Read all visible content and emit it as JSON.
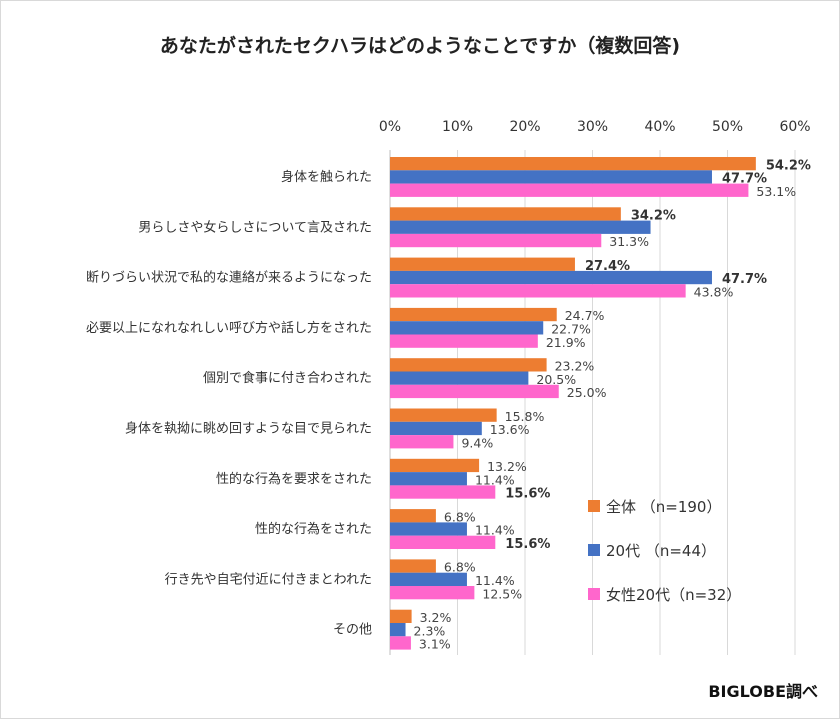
{
  "chart_data": {
    "type": "bar",
    "orientation": "horizontal",
    "title": "あなたがされたセクハラはどのようなことですか（複数回答)",
    "categories": [
      "身体を触られた",
      "男らしさや女らしさについて言及された",
      "断りづらい状況で私的な連絡が来るようになった",
      "必要以上になれなれしい呼び方や話し方をされた",
      "個別で食事に付き合わされた",
      "身体を執拗に眺め回すような目で見られた",
      "性的な行為を要求をされた",
      "性的な行為をされた",
      "行き先や自宅付近に付きまとわれた",
      "その他"
    ],
    "series": [
      {
        "name": "全体 （n=190）",
        "color": "#ED7D31",
        "values": [
          54.2,
          34.2,
          27.4,
          24.7,
          23.2,
          15.8,
          13.2,
          6.8,
          6.8,
          3.2
        ],
        "labels": [
          "54.2%",
          "34.2%",
          "27.4%",
          "24.7%",
          "23.2%",
          "15.8%",
          "13.2%",
          "6.8%",
          "6.8%",
          "3.2%"
        ],
        "bold": [
          true,
          true,
          true,
          false,
          false,
          false,
          false,
          false,
          false,
          false
        ]
      },
      {
        "name": "20代 （n=44）",
        "color": "#4472C4",
        "values": [
          47.7,
          38.6,
          47.7,
          22.7,
          20.5,
          13.6,
          11.4,
          11.4,
          11.4,
          2.3
        ],
        "labels": [
          "47.7%",
          "",
          "47.7%",
          "22.7%",
          "20.5%",
          "13.6%",
          "11.4%",
          "11.4%",
          "11.4%",
          "2.3%"
        ],
        "bold": [
          true,
          false,
          true,
          false,
          false,
          false,
          false,
          false,
          false,
          false
        ]
      },
      {
        "name": "女性20代（n=32）",
        "color": "#FF66CC",
        "values": [
          53.1,
          31.3,
          43.8,
          21.9,
          25.0,
          9.4,
          15.6,
          15.6,
          12.5,
          3.1
        ],
        "labels": [
          "53.1%",
          "31.3%",
          "43.8%",
          "21.9%",
          "25.0%",
          "9.4%",
          "15.6%",
          "15.6%",
          "12.5%",
          "3.1%"
        ],
        "bold": [
          false,
          false,
          false,
          false,
          false,
          false,
          true,
          true,
          false,
          false
        ]
      }
    ],
    "xlim": [
      0,
      60
    ],
    "xticks": [
      "0%",
      "10%",
      "20%",
      "30%",
      "40%",
      "50%",
      "60%"
    ],
    "xaxis_position": "top",
    "grid": true,
    "legend_position": "bottom-right"
  },
  "source": "BIGLOBE調べ"
}
